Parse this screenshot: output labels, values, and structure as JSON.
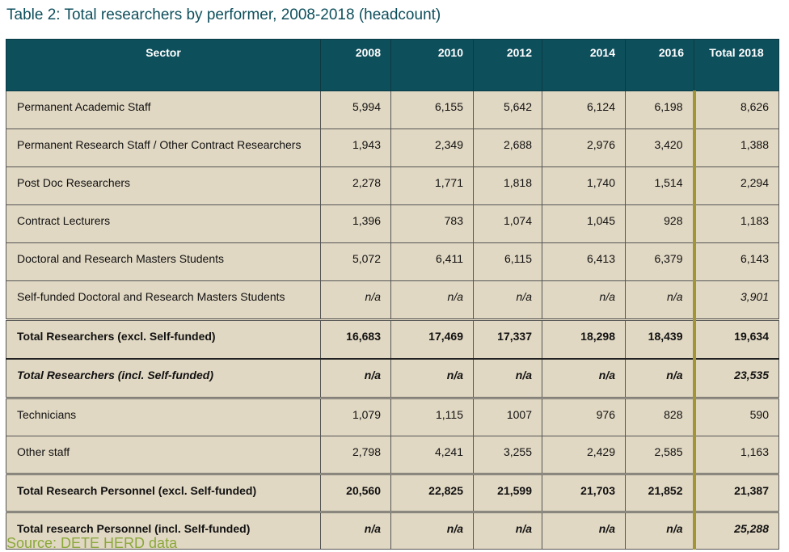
{
  "title": "Table 2:  Total researchers by performer, 2008-2018 (headcount)",
  "columns": [
    "Sector",
    "2008",
    "2010",
    "2012",
    "2014",
    "2016",
    "Total 2018"
  ],
  "rows": [
    {
      "label": "Permanent Academic Staff",
      "values": [
        "5,994",
        "6,155",
        "5,642",
        "6,124",
        "6,198",
        "8,626"
      ]
    },
    {
      "label": "Permanent Research Staff / Other Contract Researchers",
      "values": [
        "1,943",
        "2,349",
        "2,688",
        "2,976",
        "3,420",
        "1,388"
      ]
    },
    {
      "label": "Post Doc Researchers",
      "values": [
        "2,278",
        "1,771",
        "1,818",
        "1,740",
        "1,514",
        "2,294"
      ]
    },
    {
      "label": "Contract Lecturers",
      "values": [
        "1,396",
        "783",
        "1,074",
        "1,045",
        "928",
        "1,183"
      ]
    },
    {
      "label": "Doctoral and Research Masters Students",
      "values": [
        "5,072",
        "6,411",
        "6,115",
        "6,413",
        "6,379",
        "6,143"
      ]
    },
    {
      "label": "Self-funded Doctoral and Research Masters Students",
      "values": [
        "n/a",
        "n/a",
        "n/a",
        "n/a",
        "n/a",
        "3,901"
      ]
    },
    {
      "label": "Total Researchers (excl. Self-funded)",
      "values": [
        "16,683",
        "17,469",
        "17,337",
        "18,298",
        "18,439",
        "19,634"
      ]
    },
    {
      "label": "Total Researchers (incl. Self-funded)",
      "values": [
        "n/a",
        "n/a",
        "n/a",
        "n/a",
        "n/a",
        "23,535"
      ]
    },
    {
      "label": "Technicians",
      "values": [
        "1,079",
        "1,115",
        "1007",
        "976",
        "828",
        "590"
      ]
    },
    {
      "label": "Other staff",
      "values": [
        "2,798",
        "4,241",
        "3,255",
        "2,429",
        "2,585",
        "1,163"
      ]
    },
    {
      "label": "Total Research Personnel (excl. Self-funded)",
      "values": [
        "20,560",
        "22,825",
        "21,599",
        "21,703",
        "21,852",
        "21,387"
      ]
    },
    {
      "label": "Total research Personnel (incl. Self-funded)",
      "values": [
        "n/a",
        "n/a",
        "n/a",
        "n/a",
        "n/a",
        "25,288"
      ]
    }
  ],
  "source": "Source: DETE HERD data"
}
